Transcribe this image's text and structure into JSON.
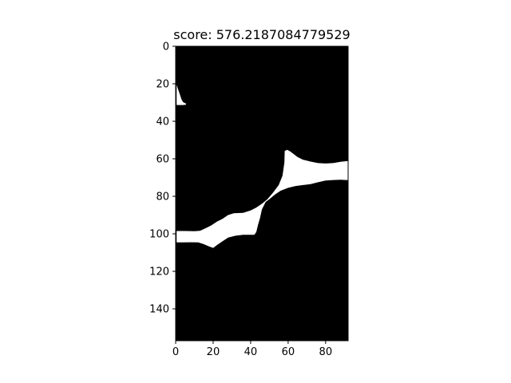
{
  "chart_data": {
    "type": "heatmap",
    "title": "score: 576.2187084779529",
    "xlabel": "",
    "ylabel": "",
    "xlim": [
      0,
      92
    ],
    "ylim": [
      157,
      0
    ],
    "grid": false,
    "colormap": "binary (black = 0, white = 1)",
    "xticks": [
      0,
      20,
      40,
      60,
      80
    ],
    "yticks": [
      0,
      20,
      40,
      60,
      80,
      100,
      120,
      140
    ],
    "mask_regions": [
      {
        "name": "small-top-left-blob",
        "value": 1,
        "polygon": [
          [
            0.5,
            20.5
          ],
          [
            1,
            22
          ],
          [
            1.5,
            23.5
          ],
          [
            2,
            25
          ],
          [
            2.5,
            26.5
          ],
          [
            3,
            28
          ],
          [
            3.5,
            29
          ],
          [
            4,
            29.8
          ],
          [
            5,
            30.3
          ],
          [
            5.5,
            30.5
          ],
          [
            5.5,
            31.2
          ],
          [
            4,
            31.3
          ],
          [
            2,
            31.3
          ],
          [
            0.5,
            31.3
          ]
        ]
      },
      {
        "name": "main-diagonal-band",
        "value": 1,
        "polygon": [
          [
            0.5,
            98.5
          ],
          [
            5,
            98.5
          ],
          [
            10,
            98.6
          ],
          [
            13,
            98.4
          ],
          [
            16,
            97
          ],
          [
            19,
            95.5
          ],
          [
            22,
            93.5
          ],
          [
            25,
            92
          ],
          [
            28,
            90
          ],
          [
            31,
            89
          ],
          [
            36,
            88.8
          ],
          [
            40,
            87.5
          ],
          [
            43,
            86
          ],
          [
            46,
            84
          ],
          [
            49,
            81.5
          ],
          [
            52,
            78
          ],
          [
            55,
            74
          ],
          [
            57,
            69
          ],
          [
            58,
            62
          ],
          [
            58.2,
            55.8
          ],
          [
            59.5,
            55.2
          ],
          [
            61,
            56
          ],
          [
            63,
            57.5
          ],
          [
            65,
            59
          ],
          [
            68,
            60.5
          ],
          [
            72,
            61.5
          ],
          [
            76,
            62.3
          ],
          [
            80,
            62.5
          ],
          [
            84,
            62.3
          ],
          [
            88,
            61.6
          ],
          [
            92,
            61.2
          ],
          [
            92,
            71.4
          ],
          [
            88,
            71.2
          ],
          [
            84,
            71.3
          ],
          [
            80,
            71.6
          ],
          [
            76,
            72.5
          ],
          [
            72,
            73.5
          ],
          [
            68,
            74
          ],
          [
            64,
            74.5
          ],
          [
            60,
            75.5
          ],
          [
            56,
            77
          ],
          [
            53,
            79
          ],
          [
            50,
            81.5
          ],
          [
            48,
            83
          ],
          [
            46,
            87
          ],
          [
            45,
            91.5
          ],
          [
            44,
            95
          ],
          [
            43,
            99
          ],
          [
            42,
            100.5
          ],
          [
            36,
            100.5
          ],
          [
            32,
            101
          ],
          [
            28,
            102
          ],
          [
            25,
            104
          ],
          [
            22,
            106
          ],
          [
            20,
            107.5
          ],
          [
            18,
            106.8
          ],
          [
            15,
            105.5
          ],
          [
            12,
            104.6
          ],
          [
            8,
            104.5
          ],
          [
            4,
            104.6
          ],
          [
            0.5,
            104.6
          ]
        ]
      }
    ]
  }
}
